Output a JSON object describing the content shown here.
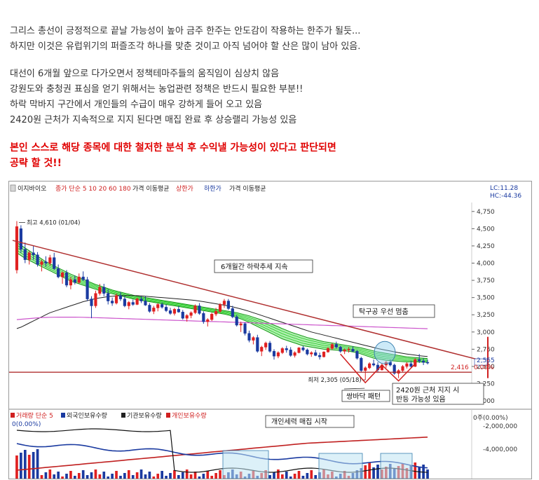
{
  "article": {
    "p1": [
      "그리스 총선이 긍정적으로 끝날 가능성이 높아 금주 한주는 안도감이 작용하는 한주가 될듯...",
      "하지만 이것은 유럽위기의 퍼즐조각 하나를 맞춘 것이고 아직 넘어야 할 산은 많이 남아 있음."
    ],
    "p2": [
      "대선이 6개월 앞으로 다가오면서 정책테마주들의 움직임이 심상치 않음",
      "강원도와 충청권 표심을 얻기 위해서는 농업관련 정책은 반드시 필요한 부분!!",
      "하락 막바지 구간에서 개인들의 수급이 매우 강하게 들어 오고 있음",
      "2420원 근처가 지속적으로 지지 된다면 매집 완료 후 상승랠리 가능성 있음"
    ],
    "warning": [
      "본인 스스로 해당 종목에 대한 철저한 분석 후 수익낼 가능성이 있다고 판단되면",
      "공략 할 것!!"
    ]
  },
  "chart_header": {
    "stock": "이지바이오",
    "legend": "종가 단순 5 10 20 60 180",
    "legend_tail": "가격 이동평균",
    "upper": "상한가",
    "lower": "하한가",
    "lower_tail": "가격 이동평균",
    "lc": "LC:11.28",
    "hc": "HC:-44.36"
  },
  "colors": {
    "up": "#e02020",
    "down": "#1a3aa0",
    "trend": "#b03030",
    "ribbon": "#22cc22",
    "ma_long": "#222222",
    "ma_magenta": "#cc55cc",
    "accent_red": "#e00000"
  },
  "chart_data": {
    "type": "candlestick",
    "stock": "이지바이오",
    "y_ticks": [
      4750,
      4500,
      4250,
      4000,
      3750,
      3500,
      3250,
      3000,
      2750,
      2500,
      2250,
      2000
    ],
    "y_tick_labels": [
      "4,750",
      "4,500",
      "4,250",
      "4,000",
      "3,750",
      "3,500",
      "3,250",
      "3,000",
      "2,750",
      "2,500",
      "2,250",
      "2,000"
    ],
    "ylim": [
      1950,
      4880
    ],
    "annotations": {
      "high": "최고 4,610 (01/04)",
      "low": "최저 2,305 (05/18)",
      "downtrend": "6개월간 하락추세 지속",
      "breakout": "탁구공 우선 멈춤",
      "double_bottom": "쌍바닥 패턴",
      "support": [
        "2420원 근처 지지 시",
        "반등 가능성 있음"
      ],
      "accumulation": "개인세력 매집 시작"
    },
    "current": {
      "price_label": "2,555",
      "pct_label": "0.00%",
      "support_label": "2,416",
      "support_value": 2416
    },
    "high_value": 4610,
    "low_value": 2305,
    "candles": [
      [
        3900,
        4610,
        3850,
        4530
      ],
      [
        4500,
        4550,
        4150,
        4200
      ],
      [
        4200,
        4300,
        4000,
        4050
      ],
      [
        4050,
        4180,
        3980,
        4150
      ],
      [
        4150,
        4250,
        4050,
        4120
      ],
      [
        4120,
        4160,
        3950,
        3980
      ],
      [
        3980,
        4050,
        3880,
        4020
      ],
      [
        4020,
        4100,
        3950,
        4000
      ],
      [
        4000,
        4120,
        3960,
        4080
      ],
      [
        4080,
        4150,
        3900,
        3920
      ],
      [
        3920,
        3980,
        3780,
        3800
      ],
      [
        3800,
        3880,
        3700,
        3860
      ],
      [
        3860,
        3900,
        3650,
        3680
      ],
      [
        3680,
        3800,
        3620,
        3760
      ],
      [
        3760,
        3820,
        3690,
        3720
      ],
      [
        3720,
        3850,
        3700,
        3800
      ],
      [
        3800,
        3880,
        3740,
        3760
      ],
      [
        3760,
        3800,
        3450,
        3480
      ],
      [
        3480,
        3520,
        3200,
        3380
      ],
      [
        3380,
        3600,
        3350,
        3560
      ],
      [
        3560,
        3700,
        3530,
        3650
      ],
      [
        3650,
        3700,
        3520,
        3560
      ],
      [
        3560,
        3620,
        3400,
        3450
      ],
      [
        3450,
        3500,
        3380,
        3420
      ],
      [
        3420,
        3560,
        3400,
        3530
      ],
      [
        3530,
        3580,
        3450,
        3480
      ],
      [
        3480,
        3520,
        3360,
        3380
      ],
      [
        3380,
        3450,
        3330,
        3430
      ],
      [
        3430,
        3470,
        3380,
        3400
      ],
      [
        3400,
        3500,
        3390,
        3480
      ],
      [
        3480,
        3520,
        3420,
        3450
      ],
      [
        3450,
        3520,
        3380,
        3390
      ],
      [
        3390,
        3420,
        3280,
        3300
      ],
      [
        3300,
        3380,
        3260,
        3350
      ],
      [
        3350,
        3420,
        3300,
        3400
      ],
      [
        3400,
        3430,
        3340,
        3360
      ],
      [
        3360,
        3400,
        3290,
        3310
      ],
      [
        3310,
        3350,
        3250,
        3270
      ],
      [
        3270,
        3350,
        3240,
        3330
      ],
      [
        3330,
        3380,
        3280,
        3290
      ],
      [
        3290,
        3320,
        3180,
        3200
      ],
      [
        3200,
        3260,
        3150,
        3240
      ],
      [
        3240,
        3300,
        3200,
        3280
      ],
      [
        3280,
        3400,
        3260,
        3380
      ],
      [
        3380,
        3420,
        3250,
        3270
      ],
      [
        3270,
        3300,
        3120,
        3150
      ],
      [
        3150,
        3200,
        3080,
        3180
      ],
      [
        3180,
        3280,
        3160,
        3260
      ],
      [
        3260,
        3350,
        3230,
        3300
      ],
      [
        3300,
        3420,
        3280,
        3400
      ],
      [
        3400,
        3480,
        3350,
        3450
      ],
      [
        3450,
        3480,
        3320,
        3340
      ],
      [
        3340,
        3380,
        3200,
        3220
      ],
      [
        3220,
        3250,
        3080,
        3100
      ],
      [
        3100,
        3150,
        3000,
        3120
      ],
      [
        3120,
        3140,
        2950,
        2980
      ],
      [
        2980,
        3020,
        2850,
        2880
      ],
      [
        2880,
        2940,
        2820,
        2920
      ],
      [
        2920,
        2960,
        2700,
        2720
      ],
      [
        2720,
        2800,
        2650,
        2780
      ],
      [
        2780,
        2860,
        2740,
        2840
      ],
      [
        2840,
        2870,
        2700,
        2720
      ],
      [
        2720,
        2750,
        2600,
        2650
      ],
      [
        2650,
        2720,
        2620,
        2700
      ],
      [
        2700,
        2780,
        2680,
        2760
      ],
      [
        2760,
        2800,
        2700,
        2740
      ],
      [
        2740,
        2780,
        2640,
        2660
      ],
      [
        2660,
        2720,
        2630,
        2700
      ],
      [
        2700,
        2780,
        2690,
        2770
      ],
      [
        2770,
        2800,
        2720,
        2740
      ],
      [
        2740,
        2760,
        2660,
        2680
      ],
      [
        2680,
        2720,
        2640,
        2700
      ],
      [
        2700,
        2740,
        2650,
        2660
      ],
      [
        2660,
        2700,
        2600,
        2640
      ],
      [
        2640,
        2720,
        2630,
        2710
      ],
      [
        2710,
        2780,
        2700,
        2760
      ],
      [
        2760,
        2840,
        2740,
        2820
      ],
      [
        2820,
        2860,
        2760,
        2780
      ],
      [
        2780,
        2800,
        2700,
        2720
      ],
      [
        2720,
        2760,
        2680,
        2740
      ],
      [
        2740,
        2780,
        2700,
        2750
      ],
      [
        2750,
        2790,
        2710,
        2720
      ],
      [
        2720,
        2740,
        2600,
        2620
      ],
      [
        2620,
        2640,
        2420,
        2440
      ],
      [
        2440,
        2500,
        2305,
        2480
      ],
      [
        2480,
        2560,
        2460,
        2540
      ],
      [
        2540,
        2600,
        2500,
        2520
      ],
      [
        2520,
        2560,
        2420,
        2450
      ],
      [
        2450,
        2540,
        2440,
        2520
      ],
      [
        2520,
        2580,
        2480,
        2560
      ],
      [
        2560,
        2600,
        2500,
        2520
      ],
      [
        2520,
        2540,
        2380,
        2400
      ],
      [
        2400,
        2460,
        2330,
        2440
      ],
      [
        2440,
        2520,
        2420,
        2500
      ],
      [
        2500,
        2560,
        2470,
        2540
      ],
      [
        2540,
        2580,
        2480,
        2500
      ],
      [
        2500,
        2620,
        2490,
        2600
      ],
      [
        2600,
        2680,
        2550,
        2580
      ],
      [
        2580,
        2620,
        2520,
        2560
      ],
      [
        2560,
        2600,
        2530,
        2555
      ]
    ],
    "ribbon_fast": [
      4150,
      4110,
      4070,
      4040,
      4010,
      3980,
      3950,
      3920,
      3890,
      3860,
      3830,
      3800,
      3770,
      3740,
      3720,
      3700,
      3680,
      3660,
      3640,
      3620,
      3600,
      3585,
      3570,
      3555,
      3540,
      3525,
      3510,
      3495,
      3480,
      3470,
      3460,
      3450,
      3440,
      3430,
      3420,
      3410,
      3400,
      3390,
      3380,
      3370,
      3360,
      3350,
      3340,
      3330,
      3320,
      3310,
      3300,
      3290,
      3280,
      3270,
      3260,
      3245,
      3230,
      3210,
      3190,
      3165,
      3140,
      3110,
      3080,
      3050,
      3020,
      2990,
      2960,
      2930,
      2900,
      2880,
      2860,
      2840,
      2820,
      2800,
      2790,
      2780,
      2770,
      2760,
      2750,
      2745,
      2740,
      2735,
      2730,
      2725,
      2720,
      2710,
      2700,
      2680,
      2660,
      2640,
      2620,
      2610,
      2600,
      2590,
      2585,
      2580,
      2575,
      2570,
      2565,
      2565,
      2565,
      2565,
      2560,
      2560
    ],
    "ribbon_slow": [
      4300,
      4260,
      4220,
      4180,
      4140,
      4100,
      4060,
      4020,
      3990,
      3960,
      3930,
      3900,
      3870,
      3840,
      3815,
      3790,
      3765,
      3740,
      3715,
      3690,
      3670,
      3650,
      3630,
      3610,
      3595,
      3580,
      3565,
      3550,
      3535,
      3520,
      3510,
      3500,
      3490,
      3480,
      3470,
      3460,
      3450,
      3440,
      3430,
      3420,
      3410,
      3400,
      3390,
      3380,
      3370,
      3360,
      3350,
      3340,
      3330,
      3320,
      3310,
      3300,
      3290,
      3280,
      3265,
      3250,
      3235,
      3215,
      3195,
      3175,
      3150,
      3125,
      3100,
      3075,
      3050,
      3025,
      3000,
      2980,
      2960,
      2940,
      2920,
      2905,
      2890,
      2875,
      2860,
      2850,
      2840,
      2830,
      2820,
      2810,
      2800,
      2790,
      2780,
      2770,
      2755,
      2740,
      2725,
      2710,
      2700,
      2690,
      2680,
      2670,
      2660,
      2650,
      2640,
      2635,
      2630,
      2625,
      2620,
      2615
    ],
    "ma_long": [
      3050,
      3070,
      3100,
      3130,
      3160,
      3190,
      3220,
      3250,
      3280,
      3300,
      3320,
      3340,
      3360,
      3380,
      3400,
      3420,
      3440,
      3455,
      3470,
      3485,
      3495,
      3505,
      3515,
      3520,
      3525,
      3528,
      3530,
      3530,
      3530,
      3528,
      3525,
      3520,
      3515,
      3510,
      3505,
      3500,
      3495,
      3490,
      3485,
      3480,
      3475,
      3470,
      3465,
      3458,
      3450,
      3440,
      3430,
      3420,
      3410,
      3400,
      3390,
      3378,
      3365,
      3350,
      3335,
      3318,
      3300,
      3280,
      3260,
      3240,
      3220,
      3200,
      3180,
      3160,
      3140,
      3120,
      3100,
      3080,
      3060,
      3040,
      3020,
      3000,
      2985,
      2970,
      2955,
      2940,
      2925,
      2910,
      2895,
      2880,
      2865,
      2850,
      2835,
      2820,
      2805,
      2790,
      2775,
      2760,
      2748,
      2736,
      2724,
      2712,
      2700,
      2690,
      2680,
      2672,
      2664,
      2656,
      2650,
      2645
    ],
    "ma_magenta": [
      3180,
      3185,
      3190,
      3195,
      3200,
      3205,
      3210,
      3212,
      3214,
      3215,
      3216,
      3216,
      3216,
      3216,
      3216,
      3215,
      3214,
      3212,
      3210,
      3208,
      3206,
      3204,
      3202,
      3200,
      3198,
      3196,
      3194,
      3192,
      3190,
      3188,
      3186,
      3184,
      3182,
      3180,
      3178,
      3176,
      3174,
      3172,
      3170,
      3168,
      3166,
      3164,
      3162,
      3160,
      3158,
      3156,
      3154,
      3152,
      3150,
      3148,
      3146,
      3144,
      3142,
      3140,
      3138,
      3136,
      3134,
      3132,
      3130,
      3128,
      3126,
      3124,
      3122,
      3120,
      3118,
      3116,
      3114,
      3112,
      3110,
      3108,
      3106,
      3104,
      3102,
      3100,
      3098,
      3096,
      3094,
      3092,
      3090,
      3088,
      3086,
      3084,
      3082,
      3080,
      3078,
      3076,
      3074,
      3072,
      3070,
      3068,
      3066,
      3064,
      3062,
      3060,
      3058,
      3056,
      3054,
      3052,
      3050,
      3048
    ],
    "trendline": {
      "start_value": 4330,
      "end_value": 2780
    },
    "volume_panel": {
      "legend": [
        "거래량 단순 5",
        "외국인보유수량",
        "기관보유수량",
        "개인보유수량"
      ],
      "y_ticks": [
        0,
        -2000000,
        -4000000
      ],
      "y_tick_labels": [
        "-2,000,000",
        "-4,000,000"
      ],
      "zero_label": "0주(0.00%)",
      "left_label": "0(0.00%)"
    }
  }
}
